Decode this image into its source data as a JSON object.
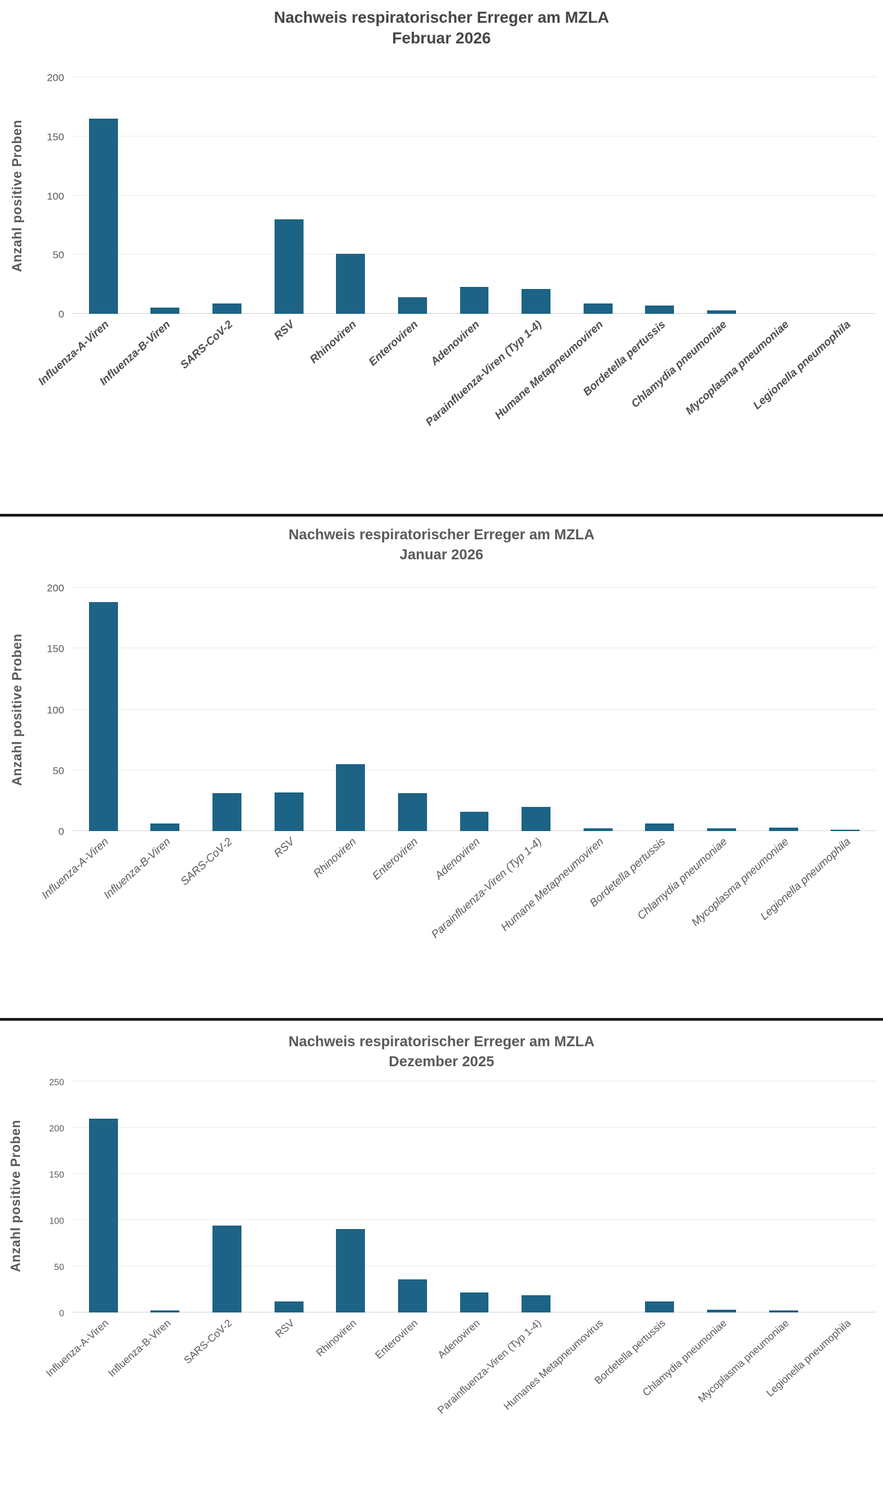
{
  "colors": {
    "bar": "#1d6385",
    "grid": "#ececec",
    "baseline": "#d9d9d9",
    "axis_text": "#595959",
    "divider": "#1c1c1c"
  },
  "chart_data": [
    {
      "type": "bar",
      "title_line1": "Nachweis respiratorischer Erreger am MZLA",
      "title_line2": "Februar 2026",
      "ylabel": "Anzahl positive Proben",
      "ylim": [
        0,
        200
      ],
      "yticks": [
        0,
        50,
        100,
        150,
        200
      ],
      "grid": true,
      "legend": "none",
      "categories": [
        "Influenza-A-Viren",
        "Influenza-B-Viren",
        "SARS-CoV-2",
        "RSV",
        "Rhinoviren",
        "Enteroviren",
        "Adenoviren",
        "Parainfluenza-Viren (Typ 1-4)",
        "Humane Metapneumoviren",
        "Bordetella pertussis",
        "Chlamydia pneumoniae",
        "Mycoplasma pneumoniae",
        "Legionella pneumophila"
      ],
      "values": [
        165,
        5,
        9,
        80,
        51,
        14,
        23,
        21,
        9,
        7,
        3,
        0,
        0
      ]
    },
    {
      "type": "bar",
      "title_line1": "Nachweis respiratorischer Erreger am MZLA",
      "title_line2": "Januar 2026",
      "ylabel": "Anzahl positive Proben",
      "ylim": [
        0,
        200
      ],
      "yticks": [
        0,
        50,
        100,
        150,
        200
      ],
      "grid": true,
      "legend": "none",
      "categories": [
        "Influenza-A-Viren",
        "Influenza-B-Viren",
        "SARS-CoV-2",
        "RSV",
        "Rhinoviren",
        "Enteroviren",
        "Adenoviren",
        "Parainfluenza-Viren (Typ 1-4)",
        "Humane Metapneumoviren",
        "Bordetella pertussis",
        "Chlamydia pneumoniae",
        "Mycoplasma pneumoniae",
        "Legionella pneumophila"
      ],
      "values": [
        188,
        6,
        31,
        32,
        55,
        31,
        16,
        20,
        2,
        6,
        2,
        3,
        1
      ]
    },
    {
      "type": "bar",
      "title_line1": "Nachweis respiratorischer Erreger am MZLA",
      "title_line2": "Dezember 2025",
      "ylabel": "Anzahl positive Proben",
      "ylim": [
        0,
        250
      ],
      "yticks": [
        0,
        50,
        100,
        150,
        200,
        250
      ],
      "grid": true,
      "legend": "none",
      "categories": [
        "Influenza-A-Viren",
        "Influenza-B-Viren",
        "SARS-CoV-2",
        "RSV",
        "Rhinoviren",
        "Enteroviren",
        "Adenoviren",
        "Parainfluenza-Viren (Typ 1-4)",
        "Humanes Metapneumovirus",
        "Bordetella pertussis",
        "Chlamydia pneumoniae",
        "Mycoplasma pneumoniae",
        "Legionella pneumophila"
      ],
      "values": [
        210,
        2,
        94,
        12,
        90,
        36,
        22,
        19,
        0,
        12,
        3,
        2,
        0
      ]
    }
  ]
}
